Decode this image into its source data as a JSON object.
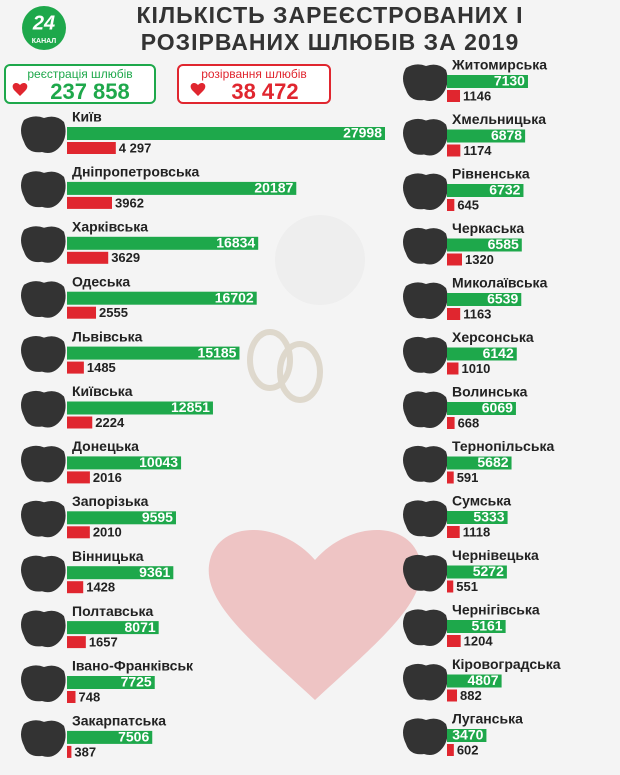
{
  "logo": {
    "number": "24",
    "name": "КАНАЛ"
  },
  "chart_data": {
    "type": "bar",
    "title": "КІЛЬКІСТЬ ЗАРЕЄСТРОВАНИХ І РОЗІРВАНИХ ШЛЮБІВ ЗА 2019",
    "categories": [
      "Київ",
      "Дніпропетровська",
      "Харківська",
      "Одеська",
      "Львівська",
      "Київська",
      "Донецька",
      "Запорізька",
      "Вінницька",
      "Полтавська",
      "Івано-Франківськ",
      "Закарпатська",
      "Житомирська",
      "Хмельницька",
      "Рівненська",
      "Черкаська",
      "Миколаївська",
      "Херсонська",
      "Волинська",
      "Тернопільська",
      "Сумська",
      "Чернівецька",
      "Чернігівська",
      "Кіровоградська",
      "Луганська"
    ],
    "series": [
      {
        "name": "реєстрація шлюбів",
        "color": "#1ea84b",
        "total": {
          "value": 237858,
          "label": "237 858"
        },
        "values": [
          27998,
          20187,
          16834,
          16702,
          15185,
          12851,
          10043,
          9595,
          9361,
          8071,
          7725,
          7506,
          7130,
          6878,
          6732,
          6585,
          6539,
          6142,
          6069,
          5682,
          5333,
          5272,
          5161,
          4807,
          3470
        ]
      },
      {
        "name": "розірвання шлюбів",
        "color": "#e0262f",
        "total": {
          "value": 38472,
          "label": "38 472"
        },
        "values": [
          4297,
          3962,
          3629,
          2555,
          1485,
          2224,
          2016,
          2010,
          1428,
          1657,
          748,
          387,
          1146,
          1174,
          645,
          1320,
          1163,
          1010,
          668,
          591,
          1118,
          551,
          1204,
          882,
          602
        ],
        "value_labels": [
          "4 297",
          "3962",
          "3629",
          "2555",
          "1485",
          "2224",
          "2016",
          "2010",
          "1428",
          "1657",
          "748",
          "387",
          "1146",
          "1174",
          "645",
          "1320",
          "1163",
          "1010",
          "668",
          "591",
          "1118",
          "551",
          "1204",
          "882",
          "602"
        ]
      }
    ]
  }
}
